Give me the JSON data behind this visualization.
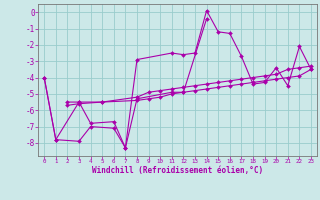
{
  "xlabel": "Windchill (Refroidissement éolien,°C)",
  "background_color": "#cce8e8",
  "line_color": "#aa00aa",
  "grid_color": "#99cccc",
  "xlim": [
    -0.5,
    23.5
  ],
  "ylim": [
    -8.8,
    0.5
  ],
  "x_ticks": [
    0,
    1,
    2,
    3,
    4,
    5,
    6,
    7,
    8,
    9,
    10,
    11,
    12,
    13,
    14,
    15,
    16,
    17,
    18,
    19,
    20,
    21,
    22,
    23
  ],
  "y_ticks": [
    0,
    -1,
    -2,
    -3,
    -4,
    -5,
    -6,
    -7,
    -8
  ],
  "series": [
    [
      [
        0,
        -4.0
      ],
      [
        1,
        -7.8
      ],
      [
        3,
        -5.5
      ],
      [
        4,
        -6.8
      ],
      [
        6,
        -6.7
      ],
      [
        7,
        -8.3
      ],
      [
        8,
        -2.9
      ],
      [
        11,
        -2.5
      ],
      [
        12,
        -2.6
      ],
      [
        13,
        -2.5
      ],
      [
        14,
        0.1
      ],
      [
        15,
        -1.2
      ],
      [
        16,
        -1.3
      ],
      [
        17,
        -2.7
      ],
      [
        18,
        -4.4
      ],
      [
        19,
        -4.3
      ],
      [
        20,
        -3.4
      ],
      [
        21,
        -4.5
      ],
      [
        22,
        -2.1
      ],
      [
        23,
        -3.5
      ]
    ],
    [
      [
        0,
        -4.0
      ],
      [
        1,
        -7.8
      ],
      [
        3,
        -7.9
      ],
      [
        4,
        -7.0
      ],
      [
        6,
        -7.1
      ],
      [
        7,
        -8.3
      ],
      [
        8,
        -5.3
      ],
      [
        11,
        -4.9
      ],
      [
        12,
        -4.9
      ],
      [
        14,
        -0.4
      ]
    ],
    [
      [
        2,
        -5.5
      ],
      [
        3,
        -5.5
      ],
      [
        5,
        -5.5
      ],
      [
        8,
        -5.2
      ],
      [
        9,
        -4.9
      ],
      [
        10,
        -4.8
      ],
      [
        11,
        -4.7
      ],
      [
        12,
        -4.6
      ],
      [
        13,
        -4.5
      ],
      [
        14,
        -4.4
      ],
      [
        15,
        -4.3
      ],
      [
        16,
        -4.2
      ],
      [
        17,
        -4.1
      ],
      [
        18,
        -4.0
      ],
      [
        19,
        -3.9
      ],
      [
        20,
        -3.8
      ],
      [
        21,
        -3.5
      ],
      [
        22,
        -3.4
      ],
      [
        23,
        -3.3
      ]
    ],
    [
      [
        2,
        -5.7
      ],
      [
        3,
        -5.6
      ],
      [
        5,
        -5.5
      ],
      [
        8,
        -5.4
      ],
      [
        9,
        -5.3
      ],
      [
        10,
        -5.2
      ],
      [
        11,
        -5.0
      ],
      [
        12,
        -4.9
      ],
      [
        13,
        -4.8
      ],
      [
        14,
        -4.7
      ],
      [
        15,
        -4.6
      ],
      [
        16,
        -4.5
      ],
      [
        17,
        -4.4
      ],
      [
        18,
        -4.3
      ],
      [
        19,
        -4.2
      ],
      [
        20,
        -4.1
      ],
      [
        21,
        -4.0
      ],
      [
        22,
        -3.9
      ],
      [
        23,
        -3.5
      ]
    ]
  ]
}
